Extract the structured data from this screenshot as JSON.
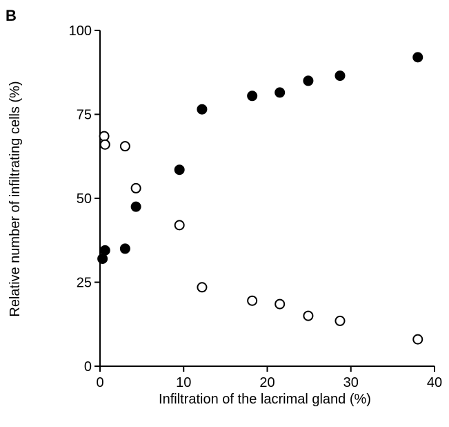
{
  "chart_data": {
    "type": "scatter",
    "panel_label": "B",
    "title": "",
    "xlabel": "Infiltration of the lacrimal gland (%)",
    "ylabel": "Relative number of infiltrating cells (%)",
    "xlim": [
      0,
      40
    ],
    "ylim": [
      0,
      100
    ],
    "xticks": [
      0,
      10,
      20,
      30,
      40
    ],
    "yticks": [
      0,
      25,
      50,
      75,
      100
    ],
    "grid": false,
    "series": [
      {
        "marker": "filled-circle",
        "color": "#000000",
        "points": [
          {
            "x": 0.3,
            "y": 32
          },
          {
            "x": 0.6,
            "y": 34.5
          },
          {
            "x": 3.0,
            "y": 35
          },
          {
            "x": 4.3,
            "y": 47.5
          },
          {
            "x": 9.5,
            "y": 58.5
          },
          {
            "x": 12.2,
            "y": 76.5
          },
          {
            "x": 18.2,
            "y": 80.5
          },
          {
            "x": 21.5,
            "y": 81.5
          },
          {
            "x": 24.9,
            "y": 85
          },
          {
            "x": 28.7,
            "y": 86.5
          },
          {
            "x": 38.0,
            "y": 92
          }
        ]
      },
      {
        "marker": "open-circle",
        "color": "#000000",
        "points": [
          {
            "x": 0.5,
            "y": 68.5
          },
          {
            "x": 0.6,
            "y": 66
          },
          {
            "x": 3.0,
            "y": 65.5
          },
          {
            "x": 4.3,
            "y": 53
          },
          {
            "x": 9.5,
            "y": 42
          },
          {
            "x": 12.2,
            "y": 23.5
          },
          {
            "x": 18.2,
            "y": 19.5
          },
          {
            "x": 21.5,
            "y": 18.5
          },
          {
            "x": 24.9,
            "y": 15
          },
          {
            "x": 28.7,
            "y": 13.5
          },
          {
            "x": 38.0,
            "y": 8
          }
        ]
      }
    ]
  }
}
